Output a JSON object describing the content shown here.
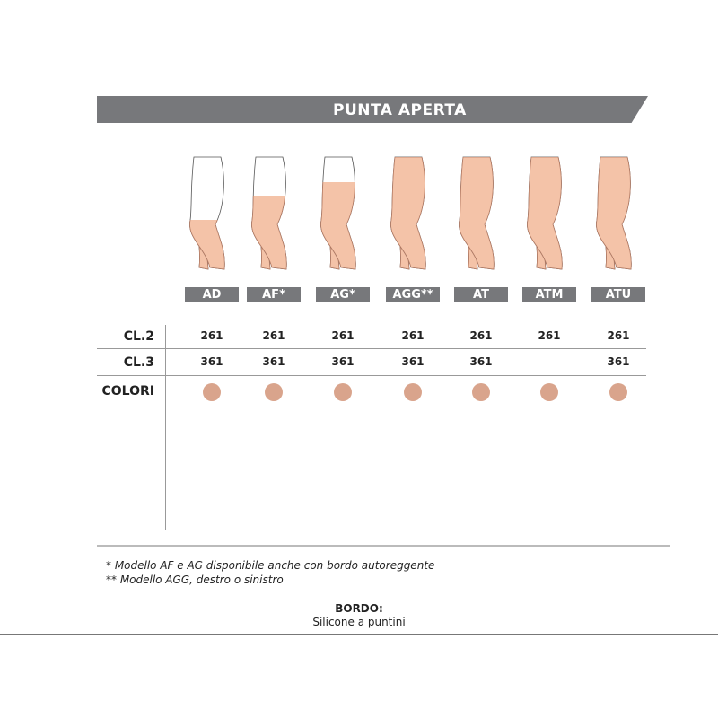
{
  "header": {
    "title": "PUNTA APERTA"
  },
  "models": [
    {
      "code": "AD",
      "cl2": "261",
      "cl3": "361"
    },
    {
      "code": "AF*",
      "cl2": "261",
      "cl3": "361"
    },
    {
      "code": "AG*",
      "cl2": "261",
      "cl3": "361"
    },
    {
      "code": "AGG**",
      "cl2": "261",
      "cl3": "361"
    },
    {
      "code": "AT",
      "cl2": "261",
      "cl3": "361"
    },
    {
      "code": "ATM",
      "cl2": "261",
      "cl3": ""
    },
    {
      "code": "ATU",
      "cl2": "261",
      "cl3": "361"
    }
  ],
  "rows": {
    "cl2": "CL.2",
    "cl3": "CL.3",
    "colori": "COLORI"
  },
  "color_swatch": "#d9a48c",
  "leg_outline": "#555555",
  "footnotes": [
    "*  Modello AF e AG disponibile anche con bordo autoreggente",
    "** Modello AGG, destro o sinistro"
  ],
  "border": {
    "label": "BORDO:",
    "value": "Silicone a puntini"
  }
}
